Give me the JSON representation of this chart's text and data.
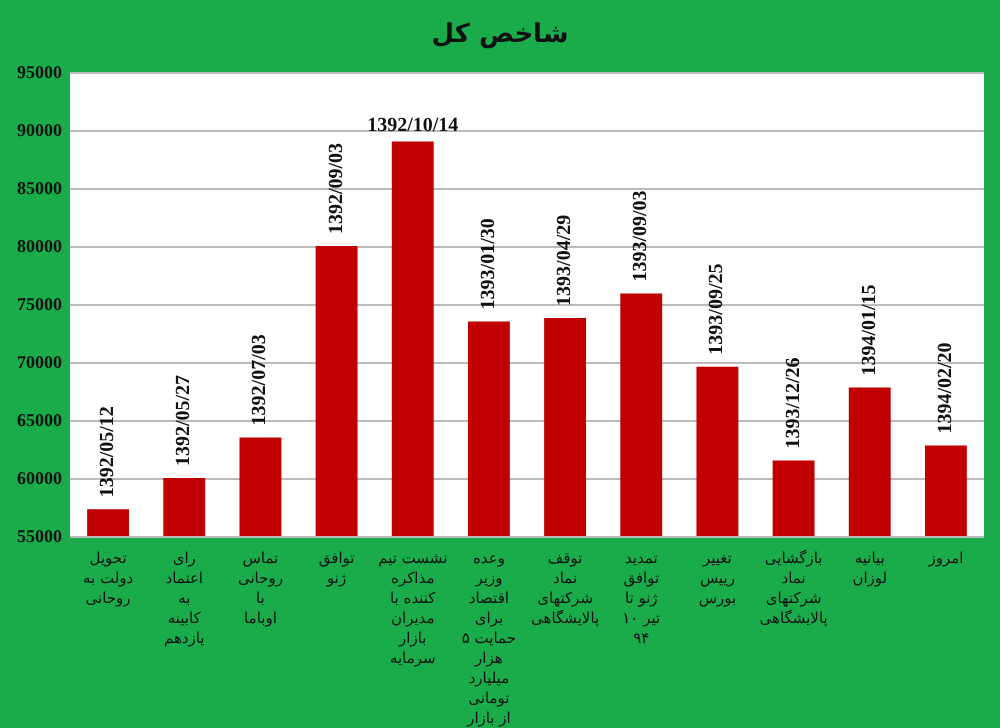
{
  "chart_data": {
    "type": "bar",
    "title": "شاخص کل",
    "categories": [
      "تحویل دولت به روحانی",
      "رای اعتماد به کابینه یازدهم",
      "تماس روحانی با اوباما",
      "توافق ژنو",
      "نشست تیم مذاکره کننده با مدیران بازار سرمایه",
      "وعده وزیر اقتصاد برای حمایت ۵ هزار میلیارد تومانی از بازار",
      "توقف نماد شرکتهای پالایشگاهی",
      "تمدید توافق ژنو تا ۱۰ تیر ۹۴",
      "تغییر رییس بورس",
      "بازگشایی نماد شرکتهای پالایشگاهی",
      "بیانیه لوزان",
      "امروز"
    ],
    "values": [
      57300,
      60000,
      63500,
      80000,
      89000,
      73500,
      73800,
      75900,
      69600,
      61500,
      67800,
      62800
    ],
    "value_labels": [
      "1392/05/12",
      "1392/05/27",
      "1392/07/03",
      "1392/09/03",
      "1392/10/14",
      "1393/01/30",
      "1393/04/29",
      "1393/09/03",
      "1393/09/25",
      "1393/12/26",
      "1394/01/15",
      "1394/02/20"
    ],
    "color": "#c00000",
    "ylim": [
      55000,
      95000
    ],
    "yticks": [
      55000,
      60000,
      65000,
      70000,
      75000,
      80000,
      85000,
      90000,
      95000
    ],
    "grid": "y"
  }
}
